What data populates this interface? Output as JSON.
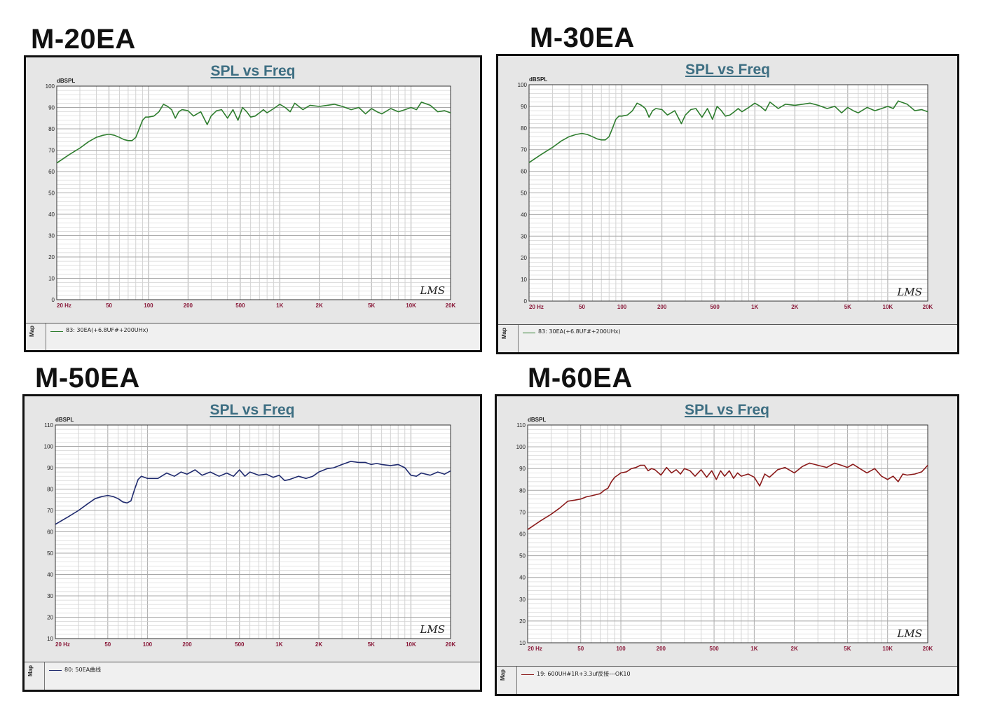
{
  "chart_data": [
    {
      "type": "line",
      "heading": "M-20EA",
      "title": "SPL vs Freq",
      "ylabel": "dBSPL",
      "xscale": "log",
      "xlim": [
        20,
        20000
      ],
      "ylim": [
        0,
        100
      ],
      "yticks": [
        0,
        10,
        20,
        30,
        40,
        50,
        60,
        70,
        80,
        90,
        100
      ],
      "xtick_values": [
        20,
        50,
        100,
        200,
        500,
        1000,
        2000,
        5000,
        10000,
        20000
      ],
      "xtick_labels": [
        "20  Hz",
        "50",
        "100",
        "200",
        "500",
        "1K",
        "2K",
        "5K",
        "10K",
        "20K"
      ],
      "grid": true,
      "watermark": "LMS",
      "side_tab": "Map",
      "series": [
        {
          "name": "83: 30EA(+6.8UF#+200UHx)",
          "color": "#2e7d2e",
          "x": [
            20,
            25,
            30,
            35,
            40,
            45,
            50,
            55,
            60,
            65,
            70,
            75,
            80,
            85,
            90,
            95,
            100,
            110,
            120,
            130,
            140,
            150,
            160,
            170,
            180,
            200,
            220,
            250,
            280,
            300,
            330,
            360,
            400,
            440,
            480,
            520,
            560,
            600,
            650,
            700,
            750,
            800,
            900,
            1000,
            1100,
            1200,
            1300,
            1500,
            1700,
            2000,
            2300,
            2600,
            3000,
            3500,
            4000,
            4500,
            5000,
            5500,
            6000,
            7000,
            8000,
            9000,
            10000,
            11000,
            12000,
            14000,
            16000,
            18000,
            20000
          ],
          "y": [
            64,
            68,
            71,
            74,
            76,
            77,
            77.5,
            77,
            76,
            75,
            74.5,
            74.5,
            76,
            80,
            84,
            85.5,
            85.5,
            86,
            88,
            91.5,
            90.5,
            89,
            85,
            88,
            89,
            88.5,
            86,
            88,
            82,
            86,
            88.5,
            89,
            85,
            89,
            84,
            90,
            88,
            85.5,
            86,
            87.5,
            89,
            87.5,
            89.5,
            91.5,
            90,
            88,
            92,
            89,
            91,
            90.5,
            91,
            91.5,
            90.5,
            89,
            90,
            87,
            89.5,
            88,
            87,
            89.5,
            88,
            89,
            90,
            89,
            92.5,
            91,
            88,
            88.5,
            87.5
          ]
        }
      ]
    },
    {
      "type": "line",
      "heading": "M-30EA",
      "title": "SPL vs Freq",
      "ylabel": "dBSPL",
      "xscale": "log",
      "xlim": [
        20,
        20000
      ],
      "ylim": [
        0,
        100
      ],
      "yticks": [
        0,
        10,
        20,
        30,
        40,
        50,
        60,
        70,
        80,
        90,
        100
      ],
      "xtick_values": [
        20,
        50,
        100,
        200,
        500,
        1000,
        2000,
        5000,
        10000,
        20000
      ],
      "xtick_labels": [
        "20  Hz",
        "50",
        "100",
        "200",
        "500",
        "1K",
        "2K",
        "5K",
        "10K",
        "20K"
      ],
      "grid": true,
      "watermark": "LMS",
      "side_tab": "Map",
      "series": [
        {
          "name": "83: 30EA(+6.8UF#+200UHx)",
          "color": "#2e7d2e",
          "x": [
            20,
            25,
            30,
            35,
            40,
            45,
            50,
            55,
            60,
            65,
            70,
            75,
            80,
            85,
            90,
            95,
            100,
            110,
            120,
            130,
            140,
            150,
            160,
            170,
            180,
            200,
            220,
            250,
            280,
            300,
            330,
            360,
            400,
            440,
            480,
            520,
            560,
            600,
            650,
            700,
            750,
            800,
            900,
            1000,
            1100,
            1200,
            1300,
            1500,
            1700,
            2000,
            2300,
            2600,
            3000,
            3500,
            4000,
            4500,
            5000,
            5500,
            6000,
            7000,
            8000,
            9000,
            10000,
            11000,
            12000,
            14000,
            16000,
            18000,
            20000
          ],
          "y": [
            64,
            68,
            71,
            74,
            76,
            77,
            77.5,
            77,
            76,
            75,
            74.5,
            74.5,
            76,
            80,
            84,
            85.5,
            85.5,
            86,
            88,
            91.5,
            90.5,
            89,
            85,
            88,
            89,
            88.5,
            86,
            88,
            82,
            86,
            88.5,
            89,
            85,
            89,
            84,
            90,
            88,
            85.5,
            86,
            87.5,
            89,
            87.5,
            89.5,
            91.5,
            90,
            88,
            92,
            89,
            91,
            90.5,
            91,
            91.5,
            90.5,
            89,
            90,
            87,
            89.5,
            88,
            87,
            89.5,
            88,
            89,
            90,
            89,
            92.5,
            91,
            88,
            88.5,
            87.5
          ]
        }
      ]
    },
    {
      "type": "line",
      "heading": "M-50EA",
      "title": "SPL vs Freq",
      "ylabel": "dBSPL",
      "xscale": "log",
      "xlim": [
        20,
        20000
      ],
      "ylim": [
        10,
        110
      ],
      "yticks": [
        10,
        20,
        30,
        40,
        50,
        60,
        70,
        80,
        90,
        100,
        110
      ],
      "xtick_values": [
        20,
        50,
        100,
        200,
        500,
        1000,
        2000,
        5000,
        10000,
        20000
      ],
      "xtick_labels": [
        "20  Hz",
        "50",
        "100",
        "200",
        "500",
        "1K",
        "2K",
        "5K",
        "10K",
        "20K"
      ],
      "grid": true,
      "watermark": "LMS",
      "side_tab": "Map",
      "series": [
        {
          "name": "80: 50EA曲线",
          "color": "#1f2a6e",
          "x": [
            20,
            25,
            30,
            35,
            40,
            45,
            50,
            55,
            60,
            65,
            70,
            75,
            80,
            85,
            90,
            95,
            100,
            110,
            120,
            140,
            160,
            180,
            200,
            230,
            260,
            300,
            350,
            400,
            450,
            500,
            550,
            600,
            700,
            800,
            900,
            1000,
            1100,
            1200,
            1400,
            1600,
            1800,
            2000,
            2300,
            2600,
            3000,
            3500,
            4000,
            4500,
            5000,
            5500,
            6000,
            7000,
            8000,
            9000,
            10000,
            11000,
            12000,
            14000,
            16000,
            18000,
            20000
          ],
          "y": [
            63.5,
            67,
            70,
            73,
            75.5,
            76.5,
            77,
            76.5,
            75.5,
            74,
            73.5,
            74.5,
            80,
            84.5,
            86,
            85.5,
            85,
            85,
            85,
            87.5,
            86,
            88,
            87,
            89,
            86.5,
            88,
            86,
            87.5,
            86,
            89,
            86,
            88,
            86.5,
            87,
            85.5,
            86.5,
            84,
            84.5,
            86,
            85,
            86,
            88,
            89.5,
            90,
            91.5,
            93,
            92.5,
            92.5,
            91.5,
            92,
            91.5,
            91,
            91.5,
            90,
            86.5,
            86,
            87.5,
            86.5,
            88,
            87,
            88.5
          ]
        }
      ]
    },
    {
      "type": "line",
      "heading": "M-60EA",
      "title": "SPL vs Freq",
      "ylabel": "dBSPL",
      "xscale": "log",
      "xlim": [
        20,
        20000
      ],
      "ylim": [
        10,
        110
      ],
      "yticks": [
        10,
        20,
        30,
        40,
        50,
        60,
        70,
        80,
        90,
        100,
        110
      ],
      "xtick_values": [
        20,
        50,
        100,
        200,
        500,
        1000,
        2000,
        5000,
        10000,
        20000
      ],
      "xtick_labels": [
        "20  Hz",
        "50",
        "100",
        "200",
        "500",
        "1K",
        "2K",
        "5K",
        "10K",
        "20K"
      ],
      "grid": true,
      "watermark": "LMS",
      "side_tab": "Map",
      "series": [
        {
          "name": "19: 600UH#1R+3.3uf反接---OK10",
          "color": "#8b1a1a",
          "x": [
            20,
            25,
            30,
            35,
            40,
            45,
            50,
            55,
            60,
            65,
            70,
            75,
            80,
            85,
            90,
            95,
            100,
            110,
            120,
            130,
            140,
            150,
            160,
            170,
            180,
            200,
            220,
            240,
            260,
            280,
            300,
            330,
            360,
            400,
            440,
            480,
            520,
            560,
            600,
            650,
            700,
            750,
            800,
            900,
            1000,
            1100,
            1200,
            1300,
            1500,
            1700,
            2000,
            2300,
            2600,
            3000,
            3500,
            4000,
            4500,
            5000,
            5500,
            6000,
            7000,
            8000,
            9000,
            10000,
            11000,
            12000,
            13000,
            14000,
            16000,
            18000,
            20000
          ],
          "y": [
            62,
            66,
            69,
            72,
            75,
            75.5,
            76,
            77,
            77.5,
            78,
            78.5,
            80,
            81,
            84,
            86,
            87,
            88,
            88.5,
            90,
            90.5,
            91.5,
            91.5,
            89,
            90,
            89.5,
            87,
            90.5,
            88,
            89.5,
            87.5,
            90,
            89,
            86.5,
            89.5,
            86,
            89,
            85,
            89,
            86.5,
            89,
            85.5,
            88,
            86.5,
            87.5,
            86,
            82,
            87.5,
            86,
            89.5,
            90.5,
            88,
            91,
            92.5,
            91.5,
            90.5,
            92.5,
            91.5,
            90.5,
            92,
            90.5,
            88,
            90,
            86.5,
            85,
            86.5,
            84,
            87.5,
            87,
            87.5,
            88.5,
            91.5
          ]
        }
      ]
    }
  ]
}
